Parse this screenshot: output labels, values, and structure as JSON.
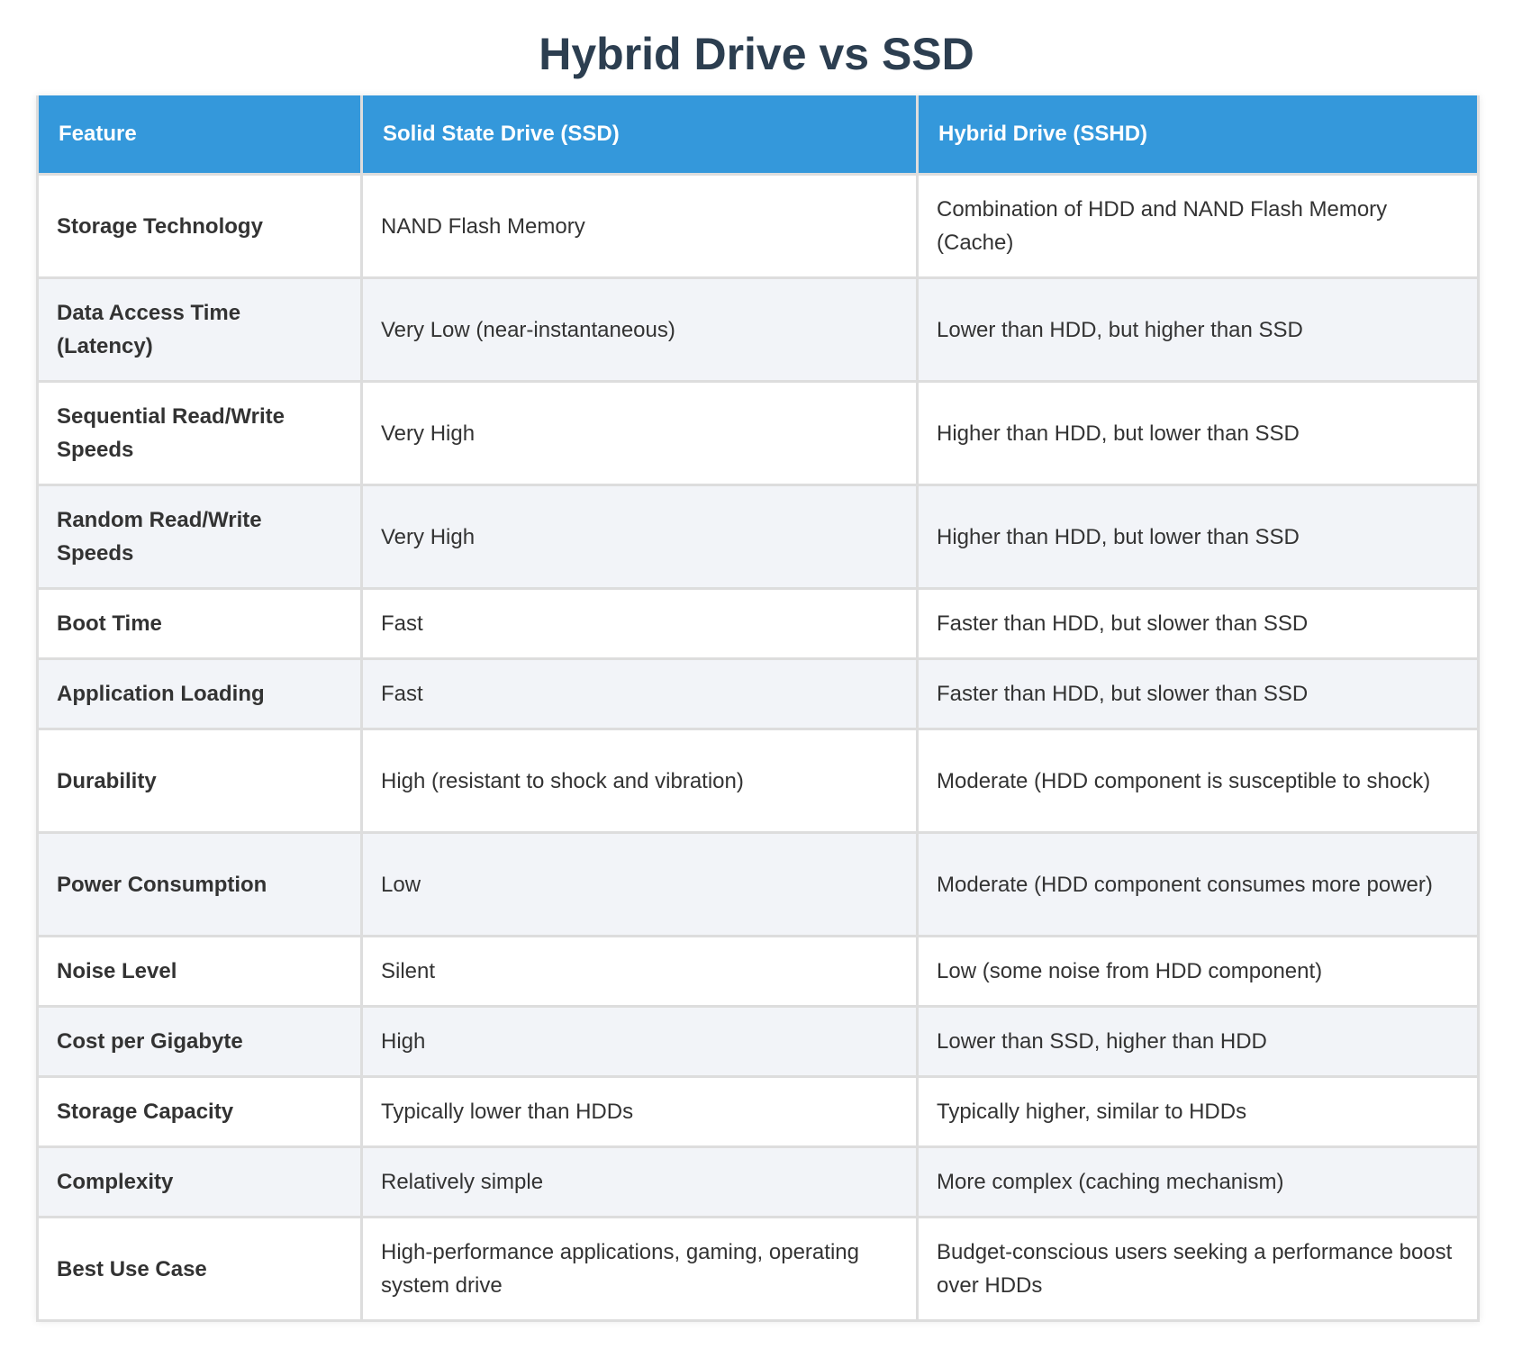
{
  "title": "Hybrid Drive vs SSD",
  "table": {
    "headers": [
      "Feature",
      "Solid State Drive (SSD)",
      "Hybrid Drive (SSHD)"
    ],
    "rows": [
      [
        "Storage Technology",
        "NAND Flash Memory",
        "Combination of HDD and NAND Flash Memory (Cache)"
      ],
      [
        "Data Access Time (Latency)",
        "Very Low (near-instantaneous)",
        "Lower than HDD, but higher than SSD"
      ],
      [
        "Sequential Read/Write Speeds",
        "Very High",
        "Higher than HDD, but lower than SSD"
      ],
      [
        "Random Read/Write Speeds",
        "Very High",
        "Higher than HDD, but lower than SSD"
      ],
      [
        "Boot Time",
        "Fast",
        "Faster than HDD, but slower than SSD"
      ],
      [
        "Application Loading",
        "Fast",
        "Faster than HDD, but slower than SSD"
      ],
      [
        "Durability",
        "High (resistant to shock and vibration)",
        "Moderate (HDD component is susceptible to shock)"
      ],
      [
        "Power Consumption",
        "Low",
        "Moderate (HDD component consumes more power)"
      ],
      [
        "Noise Level",
        "Silent",
        "Low (some noise from HDD component)"
      ],
      [
        "Cost per Gigabyte",
        "High",
        "Lower than SSD, higher than HDD"
      ],
      [
        "Storage Capacity",
        "Typically lower than HDDs",
        "Typically higher, similar to HDDs"
      ],
      [
        "Complexity",
        "Relatively simple",
        "More complex (caching mechanism)"
      ],
      [
        "Best Use Case",
        "High-performance applications, gaming, operating system drive",
        "Budget-conscious users seeking a performance boost over HDDs"
      ]
    ]
  },
  "colors": {
    "header_bg": "#3498db",
    "title": "#2c3e50",
    "stripe": "#f2f4f8",
    "border": "#dddddd"
  }
}
